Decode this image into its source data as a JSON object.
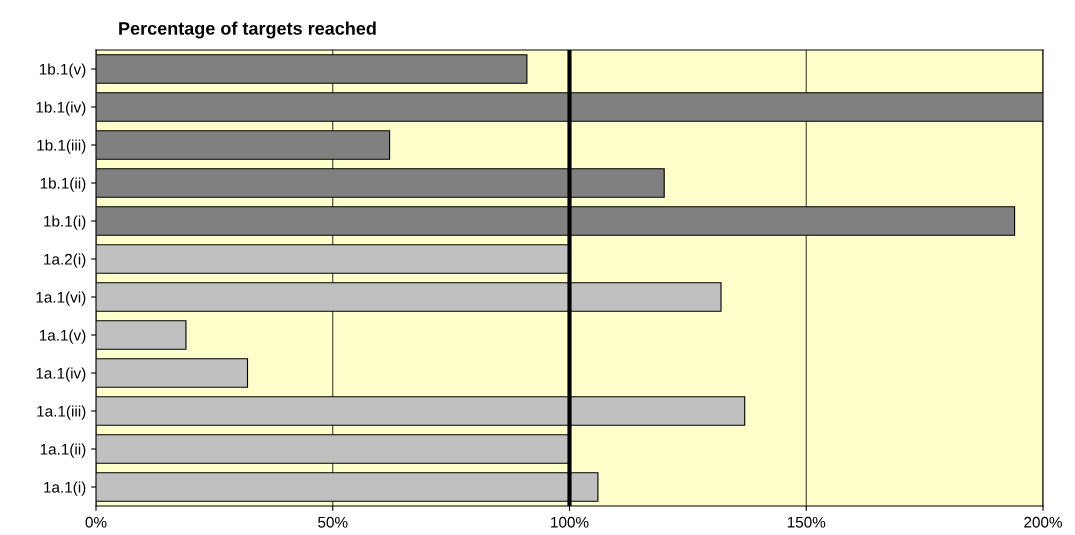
{
  "chart_data": {
    "type": "bar",
    "orientation": "horizontal",
    "title": "Percentage of targets reached",
    "categories": [
      "1b.1(v)",
      "1b.1(iv)",
      "1b.1(iii)",
      "1b.1(ii)",
      "1b.1(i)",
      "1a.2(i)",
      "1a.1(vi)",
      "1a.1(v)",
      "1a.1(iv)",
      "1a.1(iii)",
      "1a.1(ii)",
      "1a.1(i)"
    ],
    "values": [
      91,
      200,
      62,
      120,
      194,
      100,
      132,
      19,
      32,
      137,
      100,
      106
    ],
    "colors": [
      "#808080",
      "#808080",
      "#808080",
      "#808080",
      "#808080",
      "#c0c0c0",
      "#c0c0c0",
      "#c0c0c0",
      "#c0c0c0",
      "#c0c0c0",
      "#c0c0c0",
      "#c0c0c0"
    ],
    "xlim": [
      0,
      200
    ],
    "xticks": [
      {
        "value": 0,
        "label": "0%"
      },
      {
        "value": 50,
        "label": "50%"
      },
      {
        "value": 100,
        "label": "100%"
      },
      {
        "value": 150,
        "label": "150%"
      },
      {
        "value": 200,
        "label": "200%"
      }
    ],
    "ref_lines": [
      {
        "axis": "x",
        "value": 100,
        "color": "#000000"
      }
    ],
    "grid": "x"
  }
}
